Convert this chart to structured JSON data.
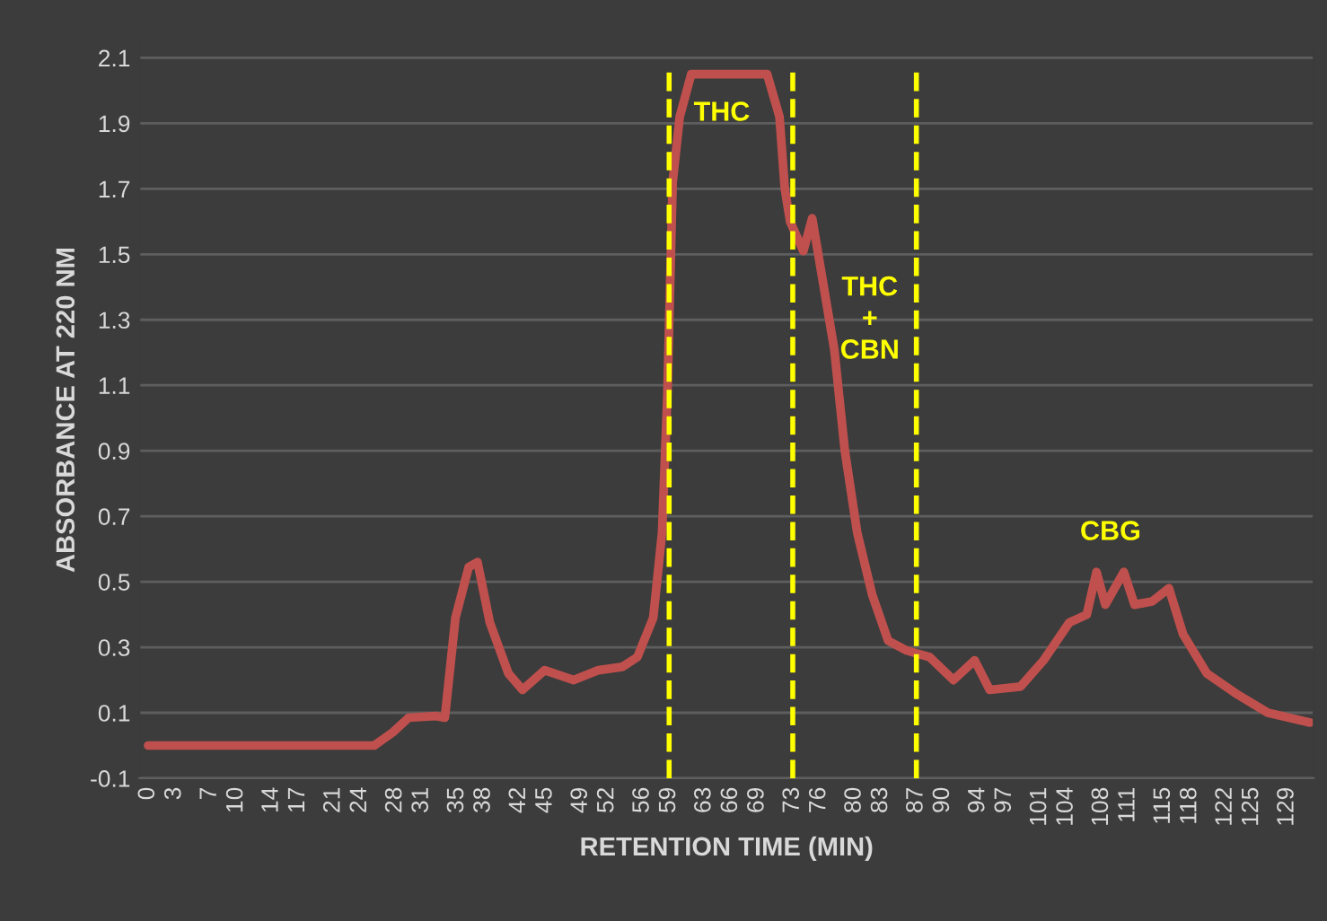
{
  "chart_data": {
    "type": "line",
    "xlabel": "RETENTION TIME (MIN)",
    "ylabel": "ABSORBANCE AT 220 NM",
    "series": [
      {
        "color": "#c0504d",
        "x": [
          0,
          25.6,
          27.7,
          29.5,
          32.6,
          33.6,
          34.8,
          36.3,
          37.3,
          38.7,
          40.8,
          42.4,
          44.9,
          48.2,
          51,
          53.7,
          55.4,
          57.2,
          58.2,
          58.8,
          59.4,
          60.2,
          61.5,
          70.1,
          71.5,
          72.1,
          72.7,
          74.2,
          75.2,
          76.2,
          77.7,
          78.9,
          80.3,
          82,
          83.8,
          85.9,
          88.5,
          91.2,
          93.6,
          95.3,
          98.8,
          101.4,
          104.3,
          106.3,
          107.4,
          108.4,
          110.5,
          111.7,
          113.7,
          115.6,
          117.2,
          119.9,
          123.4,
          126.8,
          131.6
        ],
        "values": [
          0.0,
          0.0,
          0.04,
          0.085,
          0.09,
          0.085,
          0.39,
          0.545,
          0.56,
          0.375,
          0.22,
          0.17,
          0.23,
          0.2,
          0.23,
          0.24,
          0.27,
          0.39,
          0.65,
          1.07,
          1.72,
          1.92,
          2.05,
          2.05,
          1.92,
          1.7,
          1.6,
          1.51,
          1.61,
          1.45,
          1.21,
          0.9,
          0.65,
          0.46,
          0.32,
          0.29,
          0.27,
          0.2,
          0.26,
          0.17,
          0.18,
          0.26,
          0.375,
          0.4,
          0.53,
          0.43,
          0.53,
          0.43,
          0.44,
          0.48,
          0.34,
          0.22,
          0.155,
          0.1,
          0.07
        ]
      }
    ],
    "xlim": [
      -1,
      132
    ],
    "xticks": [
      0,
      3,
      7,
      10,
      14,
      17,
      21,
      24,
      28,
      31,
      35,
      38,
      42,
      45,
      49,
      52,
      56,
      59,
      63,
      66,
      69,
      73,
      76,
      80,
      83,
      87,
      90,
      94,
      97,
      101,
      104,
      108,
      111,
      115,
      118,
      122,
      125,
      129
    ],
    "ylim": [
      -0.1,
      2.15
    ],
    "yticks": [
      -0.1,
      0.1,
      0.3,
      0.5,
      0.7,
      0.9,
      1.1,
      1.3,
      1.5,
      1.7,
      1.9,
      2.1
    ],
    "grid": "y",
    "marker": "none",
    "line_style": "solid",
    "ref_lines": [
      {
        "axis": "x",
        "value": 59,
        "color": "#ffff00",
        "line_style": "dashed"
      },
      {
        "axis": "x",
        "value": 73,
        "color": "#ffff00",
        "line_style": "dashed"
      },
      {
        "axis": "x",
        "value": 87,
        "color": "#ffff00",
        "line_style": "dashed"
      }
    ],
    "annotations": [
      "THC",
      "THC\n+\nCBN",
      "CBG"
    ]
  }
}
